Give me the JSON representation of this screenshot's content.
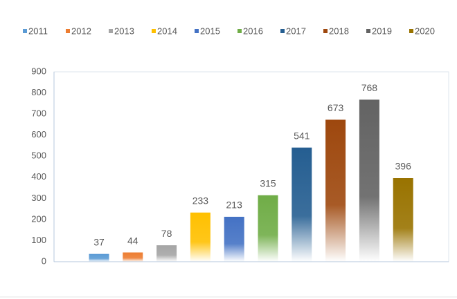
{
  "chart_data": {
    "type": "bar",
    "series": [
      {
        "name": "2011",
        "color": "#5b9bd5",
        "values": [
          37
        ]
      },
      {
        "name": "2012",
        "color": "#ed7d31",
        "values": [
          44
        ]
      },
      {
        "name": "2013",
        "color": "#a5a5a5",
        "values": [
          78
        ]
      },
      {
        "name": "2014",
        "color": "#ffc000",
        "values": [
          233
        ]
      },
      {
        "name": "2015",
        "color": "#4472c4",
        "values": [
          213
        ]
      },
      {
        "name": "2016",
        "color": "#70ad47",
        "values": [
          315
        ]
      },
      {
        "name": "2017",
        "color": "#255e91",
        "values": [
          541
        ]
      },
      {
        "name": "2018",
        "color": "#9e480e",
        "values": [
          673
        ]
      },
      {
        "name": "2019",
        "color": "#636363",
        "values": [
          768
        ]
      },
      {
        "name": "2020",
        "color": "#997300",
        "values": [
          396
        ]
      }
    ],
    "ylim": [
      0,
      900
    ],
    "yticks": [
      0,
      100,
      200,
      300,
      400,
      500,
      600,
      700,
      800,
      900
    ],
    "grid": false,
    "legend": "top"
  }
}
